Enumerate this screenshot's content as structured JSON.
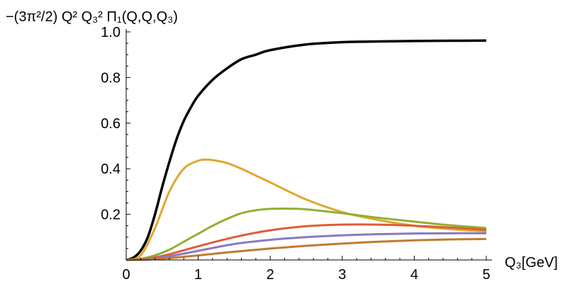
{
  "chart_data": {
    "type": "line",
    "title": "",
    "ylabel": "−(3π²/2) Q² Q₃² Π₁(Q,Q,Q₃)",
    "xlabel": "Q₃[GeV]",
    "xlim": [
      0,
      5
    ],
    "ylim": [
      0,
      1.0
    ],
    "xticks": [
      "0",
      "1",
      "2",
      "3",
      "4",
      "5"
    ],
    "yticks": [
      "0.2",
      "0.4",
      "0.6",
      "0.8",
      "1.0"
    ],
    "grid": false,
    "series": [
      {
        "color": "#000000",
        "x": [
          0,
          0.1,
          0.2,
          0.3,
          0.4,
          0.5,
          0.6,
          0.7,
          0.8,
          0.9,
          1.0,
          1.2,
          1.4,
          1.6,
          1.8,
          2.0,
          2.5,
          3.0,
          3.5,
          4.0,
          4.5,
          5.0
        ],
        "y": [
          0,
          0.01,
          0.04,
          0.1,
          0.2,
          0.32,
          0.43,
          0.53,
          0.61,
          0.67,
          0.72,
          0.79,
          0.84,
          0.88,
          0.9,
          0.92,
          0.945,
          0.955,
          0.958,
          0.96,
          0.961,
          0.962
        ]
      },
      {
        "color": "#e2a62d",
        "x": [
          0,
          0.2,
          0.4,
          0.6,
          0.8,
          1.0,
          1.1,
          1.2,
          1.4,
          1.6,
          1.8,
          2.0,
          2.5,
          3.0,
          3.5,
          4.0,
          4.5,
          5.0
        ],
        "y": [
          0,
          0.02,
          0.14,
          0.3,
          0.4,
          0.435,
          0.44,
          0.438,
          0.425,
          0.4,
          0.37,
          0.34,
          0.265,
          0.21,
          0.175,
          0.15,
          0.135,
          0.125
        ]
      },
      {
        "color": "#8fb032",
        "x": [
          0,
          0.2,
          0.4,
          0.6,
          0.8,
          1.0,
          1.2,
          1.4,
          1.6,
          1.8,
          2.0,
          2.2,
          2.4,
          2.6,
          2.8,
          3.0,
          3.5,
          4.0,
          4.5,
          5.0
        ],
        "y": [
          0,
          0.005,
          0.02,
          0.045,
          0.08,
          0.115,
          0.15,
          0.18,
          0.205,
          0.218,
          0.224,
          0.225,
          0.224,
          0.219,
          0.212,
          0.205,
          0.185,
          0.168,
          0.152,
          0.14
        ]
      },
      {
        "color": "#e05c38",
        "x": [
          0,
          0.3,
          0.6,
          1.0,
          1.5,
          2.0,
          2.5,
          3.0,
          3.5,
          4.0,
          4.5,
          5.0
        ],
        "y": [
          0,
          0.006,
          0.025,
          0.06,
          0.1,
          0.13,
          0.148,
          0.155,
          0.155,
          0.15,
          0.142,
          0.132
        ]
      },
      {
        "color": "#8a7ac0",
        "x": [
          0,
          0.3,
          0.6,
          1.0,
          1.5,
          2.0,
          2.5,
          3.0,
          3.5,
          4.0,
          4.5,
          5.0
        ],
        "y": [
          0,
          0.004,
          0.016,
          0.04,
          0.07,
          0.088,
          0.1,
          0.108,
          0.113,
          0.116,
          0.117,
          0.117
        ]
      },
      {
        "color": "#c07a32",
        "x": [
          0,
          0.3,
          0.6,
          1.0,
          1.5,
          2.0,
          2.5,
          3.0,
          3.5,
          4.0,
          4.5,
          5.0
        ],
        "y": [
          0,
          0.002,
          0.008,
          0.02,
          0.036,
          0.05,
          0.062,
          0.072,
          0.08,
          0.086,
          0.09,
          0.092
        ]
      }
    ]
  }
}
